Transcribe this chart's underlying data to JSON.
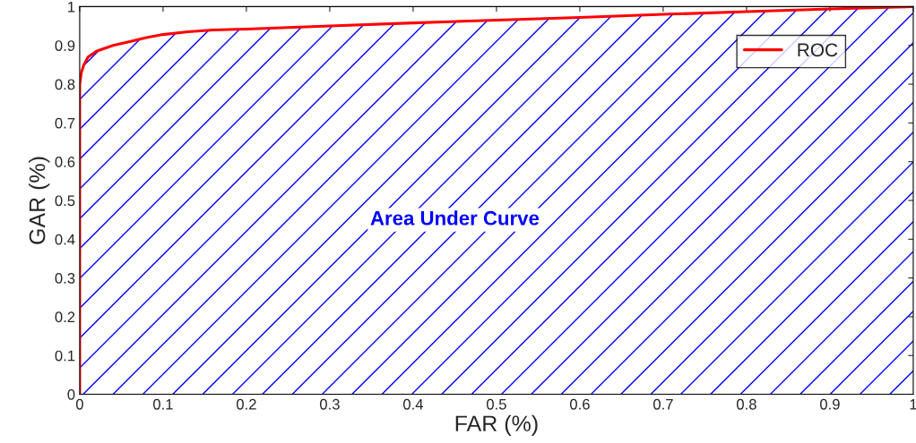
{
  "chart_data": {
    "type": "line",
    "xlabel": "FAR (%)",
    "ylabel": "GAR (%)",
    "x": [
      0,
      0,
      0.002,
      0.005,
      0.01,
      0.02,
      0.04,
      0.06,
      0.08,
      0.1,
      0.13,
      0.16,
      0.2,
      0.25,
      0.3,
      0.4,
      0.5,
      0.6,
      0.7,
      0.8,
      0.9,
      1
    ],
    "series": [
      {
        "name": "ROC",
        "color": "#ff0000",
        "values": [
          0,
          0.8,
          0.83,
          0.85,
          0.87,
          0.885,
          0.9,
          0.91,
          0.92,
          0.928,
          0.935,
          0.94,
          0.942,
          0.946,
          0.95,
          0.958,
          0.965,
          0.972,
          0.98,
          0.987,
          0.994,
          1
        ]
      }
    ],
    "xlim": [
      0,
      1
    ],
    "ylim": [
      0,
      1
    ],
    "xticks": [
      0,
      0.1,
      0.2,
      0.3,
      0.4,
      0.5,
      0.6,
      0.7,
      0.8,
      0.9,
      1
    ],
    "yticks": [
      0,
      0.1,
      0.2,
      0.3,
      0.4,
      0.5,
      0.6,
      0.7,
      0.8,
      0.9,
      1
    ],
    "annotations": [
      "Area Under Curve"
    ],
    "legend": "top right",
    "grid": false,
    "line_style": "solid",
    "marker": "none"
  }
}
